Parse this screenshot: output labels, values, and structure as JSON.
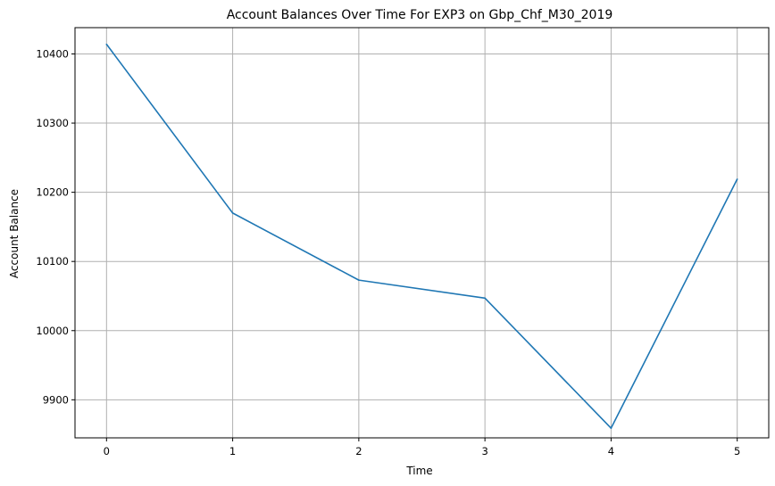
{
  "chart_data": {
    "type": "line",
    "title": "Account Balances Over Time For EXP3 on Gbp_Chf_M30_2019",
    "xlabel": "Time",
    "ylabel": "Account Balance",
    "x": [
      0,
      1,
      2,
      3,
      4,
      5
    ],
    "series": [
      {
        "values": [
          10414,
          10170,
          10073,
          10047,
          9859,
          10219
        ],
        "color": "#1f77b4"
      }
    ],
    "xlim": [
      -0.25,
      5.25
    ],
    "ylim": [
      9845,
      10438
    ],
    "xticks": [
      "0",
      "1",
      "2",
      "3",
      "4",
      "5"
    ],
    "yticks": [
      "9900",
      "10000",
      "10100",
      "10200",
      "10300",
      "10400"
    ],
    "grid": true
  }
}
